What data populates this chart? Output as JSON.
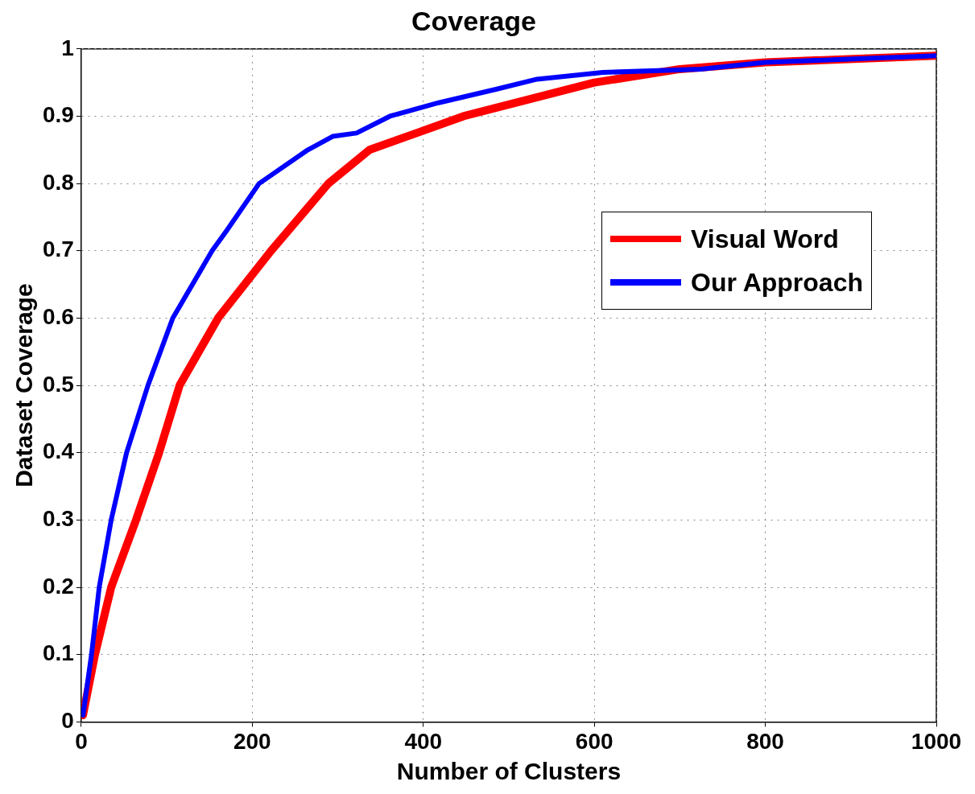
{
  "chart_data": {
    "type": "line",
    "title": "Coverage",
    "xlabel": "Number of Clusters",
    "ylabel": "Dataset Coverage",
    "xlim": [
      0,
      1000
    ],
    "xticks": [
      0,
      200,
      400,
      600,
      800,
      1000
    ],
    "ylim": [
      0,
      1
    ],
    "yticks": [
      0,
      0.1,
      0.2,
      0.3,
      0.4,
      0.5,
      0.6,
      0.7,
      0.8,
      0.9,
      1
    ],
    "grid": true,
    "legend": "top right",
    "line_style": "solid",
    "marker": "none",
    "series": [
      {
        "name": "Visual Word",
        "color": "#ff0000",
        "x": [
          2,
          16,
          35,
          64,
          91,
          115,
          160,
          222,
          289,
          337,
          447,
          600,
          700,
          800,
          1000
        ],
        "values": [
          0.01,
          0.1,
          0.2,
          0.3,
          0.4,
          0.5,
          0.6,
          0.7,
          0.8,
          0.85,
          0.9,
          0.95,
          0.97,
          0.98,
          0.99
        ]
      },
      {
        "name": "Our Approach",
        "color": "#0000ff",
        "x": [
          2,
          12,
          21,
          35,
          53,
          78,
          107,
          153,
          170,
          208,
          265,
          294,
          322,
          361,
          418,
          485,
          533,
          610,
          724,
          800,
          1000
        ],
        "values": [
          0.01,
          0.1,
          0.2,
          0.3,
          0.4,
          0.5,
          0.6,
          0.7,
          0.73,
          0.8,
          0.85,
          0.87,
          0.875,
          0.9,
          0.92,
          0.94,
          0.955,
          0.965,
          0.97,
          0.98,
          0.99
        ]
      }
    ]
  }
}
